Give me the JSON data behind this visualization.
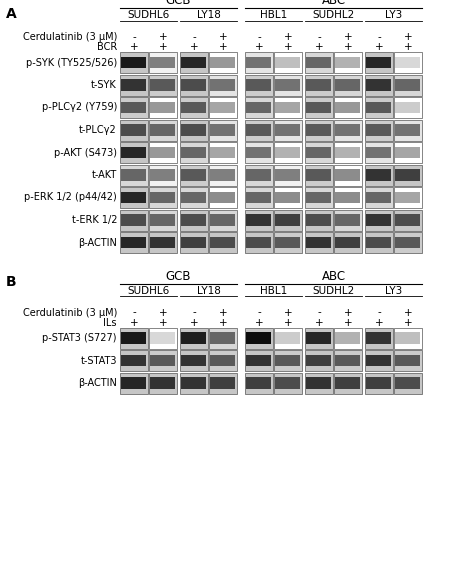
{
  "panel_A_label": "A",
  "panel_B_label": "B",
  "gcb_label": "GCB",
  "abc_label": "ABC",
  "cell_lines": [
    "SUDHL6",
    "LY18",
    "HBL1",
    "SUDHL2",
    "LY3"
  ],
  "cerdulatinib_label": "Cerdulatinib (3 μM)",
  "bcr_label": "BCR",
  "ils_label": "ILs",
  "rows_A": [
    "p-SYK (TY525/526)",
    "t-SYK",
    "p-PLCγ2 (Y759)",
    "t-PLCγ2",
    "p-AKT (S473)",
    "t-AKT",
    "p-ERK 1/2 (p44/42)",
    "t-ERK 1/2",
    "β-ACTIN"
  ],
  "rows_B": [
    "p-STAT3 (S727)",
    "t-STAT3",
    "β-ACTIN"
  ],
  "bg_color": "#ffffff",
  "text_color": "#000000",
  "title_fontsize": 8.5,
  "label_fontsize": 7.0,
  "small_fontsize": 7.5,
  "sign_fontsize": 7.5
}
